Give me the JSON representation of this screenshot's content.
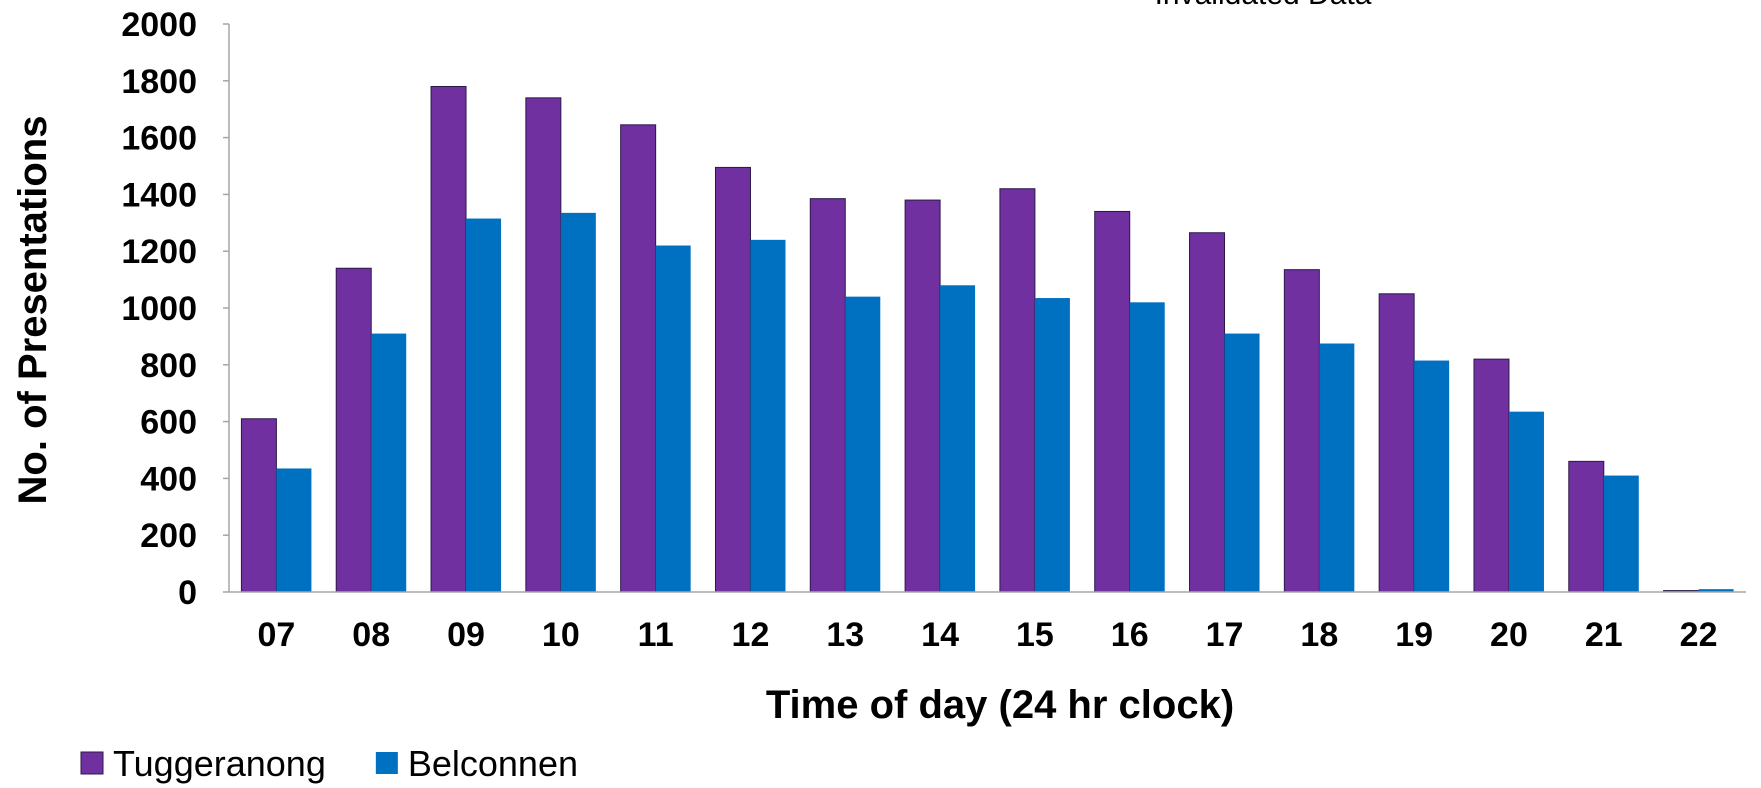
{
  "chart_data": {
    "type": "bar",
    "annotation": "Invalidated Data",
    "x_label": "Time of day (24 hr clock)",
    "y_label": "No. of Presentations",
    "categories": [
      "07",
      "08",
      "09",
      "10",
      "11",
      "12",
      "13",
      "14",
      "15",
      "16",
      "17",
      "18",
      "19",
      "20",
      "21",
      "22"
    ],
    "series": [
      {
        "name": "Tuggeranong",
        "color": "#7030a0",
        "values": [
          610,
          1140,
          1780,
          1740,
          1645,
          1495,
          1385,
          1380,
          1420,
          1340,
          1265,
          1135,
          1050,
          820,
          460,
          5
        ]
      },
      {
        "name": "Belconnen",
        "color": "#0070c0",
        "values": [
          435,
          910,
          1315,
          1335,
          1220,
          1240,
          1040,
          1080,
          1035,
          1020,
          910,
          875,
          815,
          635,
          410,
          10
        ]
      }
    ],
    "ylim": [
      0,
      2000
    ],
    "yticks": [
      0,
      200,
      400,
      600,
      800,
      1000,
      1200,
      1400,
      1600,
      1800,
      2000
    ],
    "grid": false,
    "legend": "bottom-left"
  }
}
